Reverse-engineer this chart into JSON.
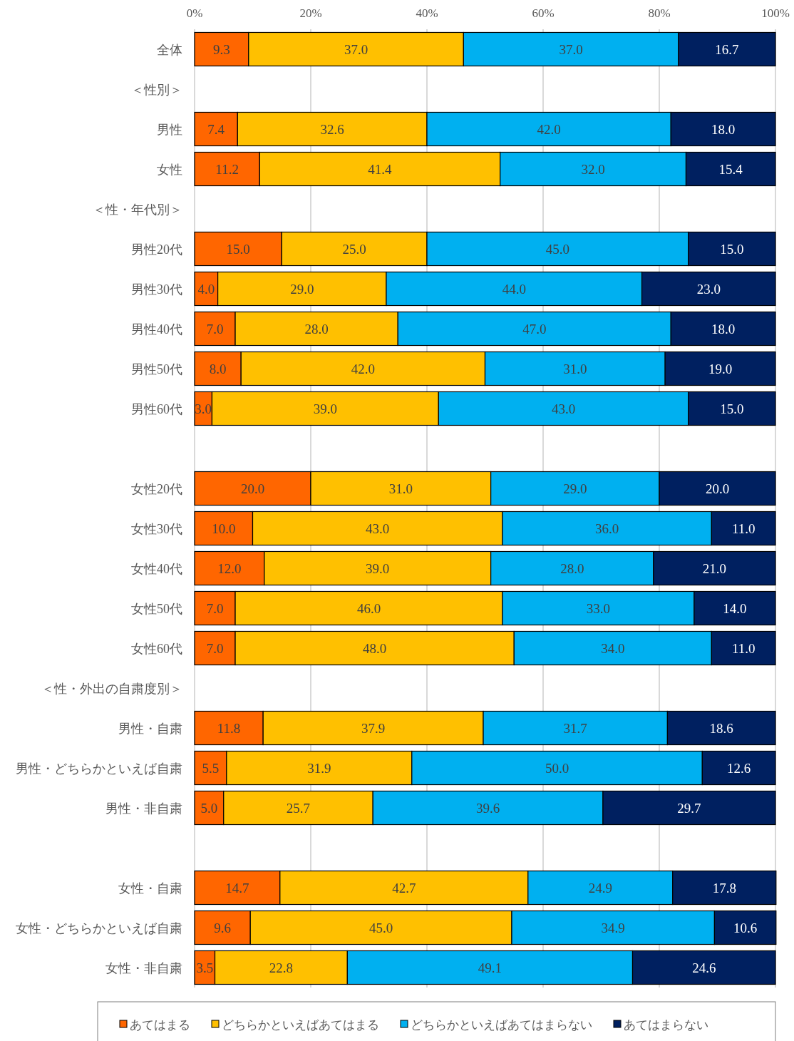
{
  "chart_data": {
    "type": "bar",
    "orientation": "horizontal",
    "stacked": true,
    "categories": [
      "全体",
      "＜性別＞",
      "男性",
      "女性",
      "＜性・年代別＞",
      "男性20代",
      "男性30代",
      "男性40代",
      "男性50代",
      "男性60代",
      null,
      "女性20代",
      "女性30代",
      "女性40代",
      "女性50代",
      "女性60代",
      "＜性・外出の自粛度別＞",
      "男性・自粛",
      "男性・どちらかといえば自粛",
      "男性・非自粛",
      null,
      "女性・自粛",
      "女性・どちらかといえば自粛",
      "女性・非自粛"
    ],
    "series": [
      {
        "name": "あてはまる",
        "color": "#ff6600",
        "values": [
          9.3,
          null,
          7.4,
          11.2,
          null,
          15.0,
          4.0,
          7.0,
          8.0,
          3.0,
          null,
          20.0,
          10.0,
          12.0,
          7.0,
          7.0,
          null,
          11.8,
          5.5,
          5.0,
          null,
          14.7,
          9.6,
          3.5
        ],
        "value_labels": [
          "9.3",
          null,
          "7.4",
          "11.2",
          null,
          "15.0",
          "4.0",
          "7.0",
          "8.0",
          "3.0",
          null,
          "20.0",
          "10.0",
          "12.0",
          "7.0",
          "7.0",
          null,
          "11.8",
          "5.5",
          "5.0",
          null,
          "14.7",
          "9.6",
          "3.5"
        ]
      },
      {
        "name": "どちらかといえばあてはまる",
        "color": "#ffc000",
        "values": [
          37.0,
          null,
          32.6,
          41.4,
          null,
          25.0,
          29.0,
          28.0,
          42.0,
          39.0,
          null,
          31.0,
          43.0,
          39.0,
          46.0,
          48.0,
          null,
          37.9,
          31.9,
          25.7,
          null,
          42.7,
          45.0,
          22.8
        ],
        "value_labels": [
          "37.0",
          null,
          "32.6",
          "41.4",
          null,
          "25.0",
          "29.0",
          "28.0",
          "42.0",
          "39.0",
          null,
          "31.0",
          "43.0",
          "39.0",
          "46.0",
          "48.0",
          null,
          "37.9",
          "31.9",
          "25.7",
          null,
          "42.7",
          "45.0",
          "22.8"
        ]
      },
      {
        "name": "どちらかといえばあてはまらない",
        "color": "#00b0f0",
        "values": [
          37.0,
          null,
          42.0,
          32.0,
          null,
          45.0,
          44.0,
          47.0,
          31.0,
          43.0,
          null,
          29.0,
          36.0,
          28.0,
          33.0,
          34.0,
          null,
          31.7,
          50.0,
          39.6,
          null,
          24.9,
          34.9,
          49.1
        ],
        "value_labels": [
          "37.0",
          null,
          "42.0",
          "32.0",
          null,
          "45.0",
          "44.0",
          "47.0",
          "31.0",
          "43.0",
          null,
          "29.0",
          "36.0",
          "28.0",
          "33.0",
          "34.0",
          null,
          "31.7",
          "50.0",
          "39.6",
          null,
          "24.9",
          "34.9",
          "49.1"
        ]
      },
      {
        "name": "あてはまらない",
        "color": "#002060",
        "values": [
          16.7,
          null,
          18.0,
          15.4,
          null,
          15.0,
          23.0,
          18.0,
          19.0,
          15.0,
          null,
          20.0,
          11.0,
          21.0,
          14.0,
          11.0,
          null,
          18.6,
          12.6,
          29.7,
          null,
          17.8,
          10.6,
          24.6
        ],
        "value_labels": [
          "16.7",
          null,
          "18.0",
          "15.4",
          null,
          "15.0",
          "23.0",
          "18.0",
          "19.0",
          "15.0",
          null,
          "20.0",
          "11.0",
          "21.0",
          "14.0",
          "11.0",
          null,
          "18.6",
          "12.6",
          "29.7",
          null,
          "17.8",
          "10.6",
          "24.6"
        ]
      }
    ],
    "xlim": [
      0,
      100
    ],
    "xticks": [
      {
        "value": 0,
        "label": "0%"
      },
      {
        "value": 20,
        "label": "20%"
      },
      {
        "value": 40,
        "label": "40%"
      },
      {
        "value": 60,
        "label": "60%"
      },
      {
        "value": 80,
        "label": "80%"
      },
      {
        "value": 100,
        "label": "100%"
      }
    ],
    "grid": "x",
    "legend": "bottom"
  }
}
